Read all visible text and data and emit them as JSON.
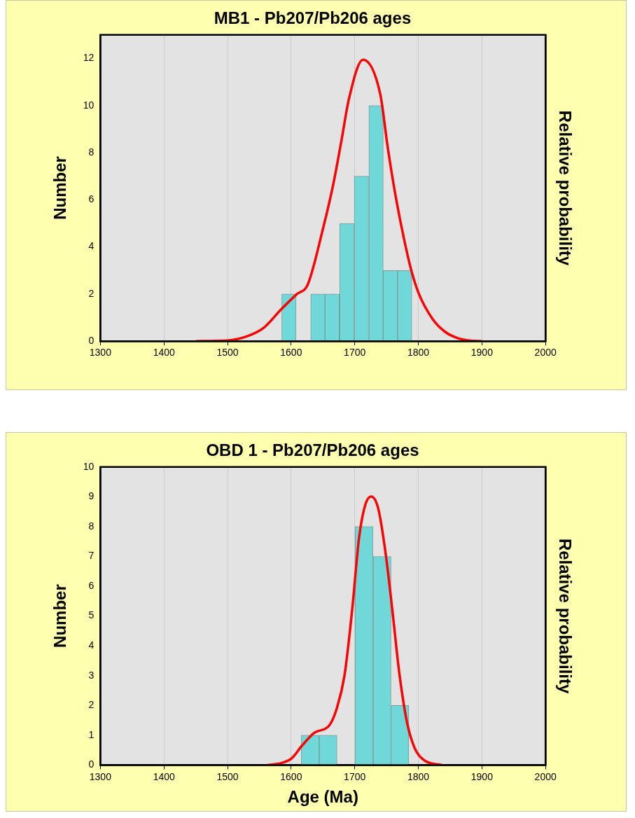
{
  "chart_data": [
    {
      "type": "histogram",
      "title": "MB1 - Pb207/Pb206 ages",
      "ylabel": "Number",
      "y2label": "Relative probability",
      "bins": [
        1585,
        1608,
        1631,
        1653,
        1676,
        1699,
        1722,
        1745,
        1767,
        1790
      ],
      "values": [
        2,
        0,
        2,
        2,
        5,
        7,
        10,
        3,
        3
      ],
      "color": "#70d8d8",
      "xlim": [
        1300,
        2000
      ],
      "xticks": [
        1300,
        1400,
        1500,
        1600,
        1700,
        1800,
        1900,
        2000
      ],
      "ylim": [
        0,
        13
      ],
      "yticks": [
        0,
        2,
        4,
        6,
        8,
        10,
        12
      ],
      "grid": "x",
      "series": [
        {
          "type": "line",
          "color": "#ff0000",
          "x": [
            1450,
            1500,
            1530,
            1556,
            1585,
            1609,
            1626,
            1650,
            1666,
            1679,
            1691,
            1713,
            1740,
            1752,
            1764,
            1777,
            1789,
            1801,
            1822,
            1842,
            1862,
            1880,
            1900
          ],
          "values": [
            0,
            0.03,
            0.2,
            0.55,
            1.37,
            2.0,
            2.4,
            4.77,
            6.63,
            8.5,
            10.3,
            11.95,
            10.5,
            8.2,
            6.2,
            4.4,
            3.0,
            2.0,
            0.96,
            0.4,
            0.13,
            0.03,
            0
          ]
        }
      ]
    },
    {
      "type": "histogram",
      "title": "OBD 1 - Pb207/Pb206 ages",
      "xlabel": "Age (Ma)",
      "ylabel": "Number",
      "y2label": "Relative probability",
      "bins": [
        1616,
        1644,
        1672,
        1700,
        1729,
        1757,
        1785
      ],
      "values": [
        1,
        1,
        0,
        8,
        7,
        2
      ],
      "color": "#70d8d8",
      "xlim": [
        1300,
        2000
      ],
      "xticks": [
        1300,
        1400,
        1500,
        1600,
        1700,
        1800,
        1900,
        2000
      ],
      "ylim": [
        0,
        10
      ],
      "yticks": [
        0,
        1,
        2,
        3,
        4,
        5,
        6,
        7,
        8,
        9,
        10
      ],
      "grid": "x",
      "series": [
        {
          "type": "line",
          "color": "#ff0000",
          "x": [
            1562,
            1585,
            1601,
            1617,
            1637,
            1660,
            1672,
            1684,
            1696,
            1707,
            1717,
            1726,
            1737,
            1749,
            1759,
            1770,
            1782,
            1794,
            1810,
            1837
          ],
          "values": [
            0,
            0.07,
            0.23,
            0.65,
            1.09,
            1.33,
            1.92,
            3.02,
            5.22,
            7.66,
            8.76,
            9.01,
            8.6,
            7.03,
            5.22,
            3.1,
            1.45,
            0.58,
            0.15,
            0
          ]
        }
      ]
    }
  ]
}
